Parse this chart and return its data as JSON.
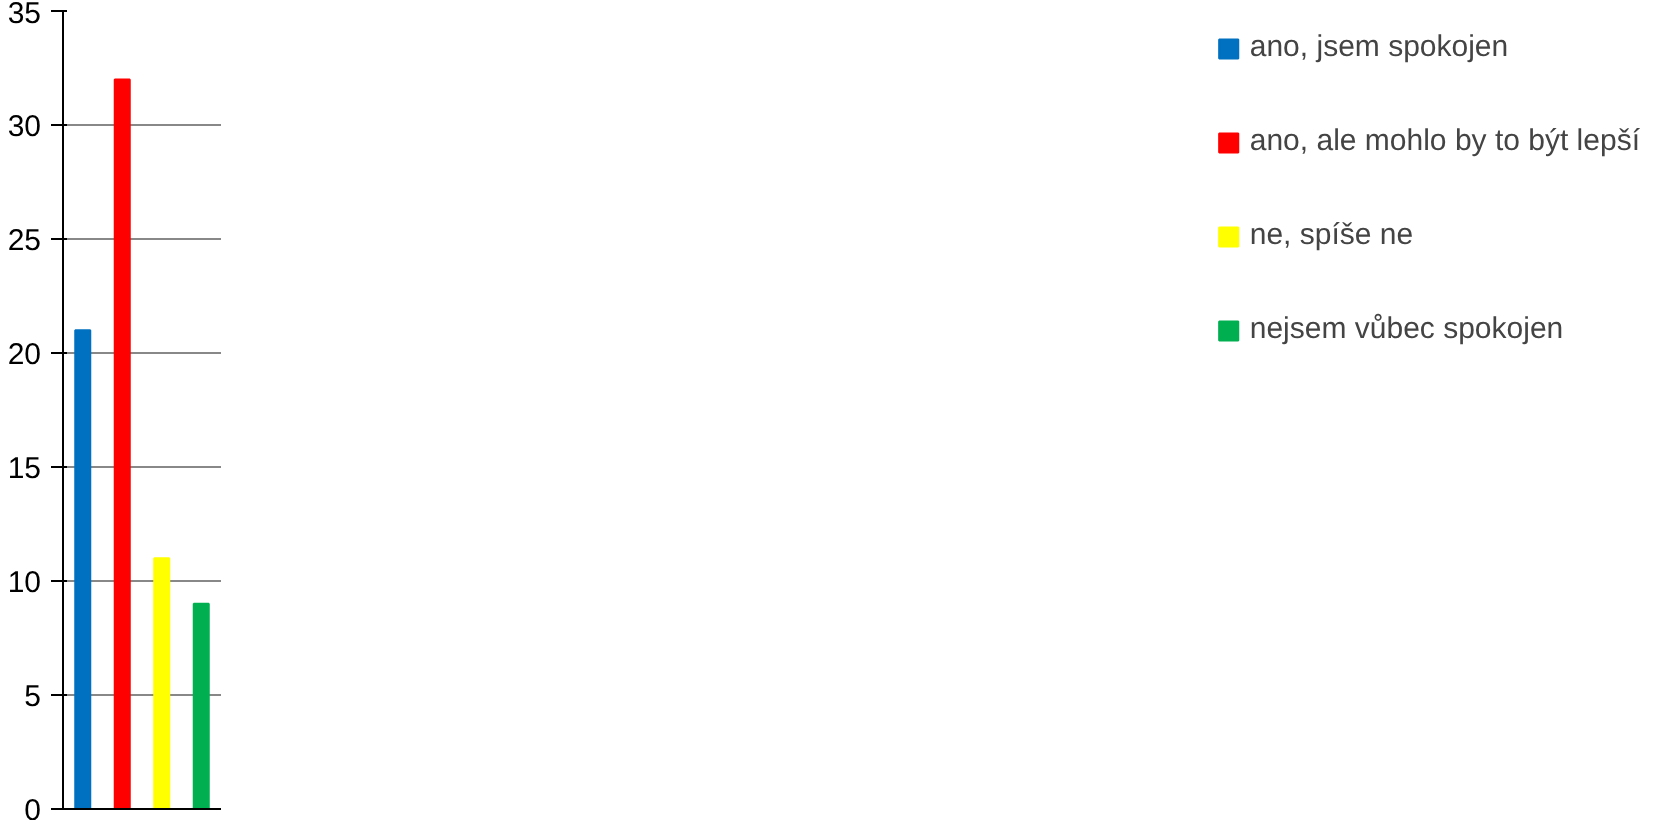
{
  "chart_data": {
    "type": "bar",
    "categories": [
      null,
      null,
      null,
      null
    ],
    "series": [
      {
        "name": "ano, jsem spokojen",
        "color": "#0070c0",
        "values": [
          21,
          null,
          null,
          null
        ]
      },
      {
        "name": "ano, ale mohlo by to být lepší",
        "color": "#ff0000",
        "values": [
          null,
          32,
          null,
          null
        ]
      },
      {
        "name": "ne, spíše ne",
        "color": "#ffff00",
        "values": [
          null,
          null,
          11,
          null
        ]
      },
      {
        "name": "nejsem vůbec spokojen",
        "color": "#00b050",
        "values": [
          null,
          null,
          null,
          9
        ]
      }
    ],
    "ylim": [
      0,
      35
    ],
    "yticks": [
      0,
      5,
      10,
      15,
      20,
      25,
      30,
      35
    ],
    "grid": "y",
    "legend": "right"
  }
}
